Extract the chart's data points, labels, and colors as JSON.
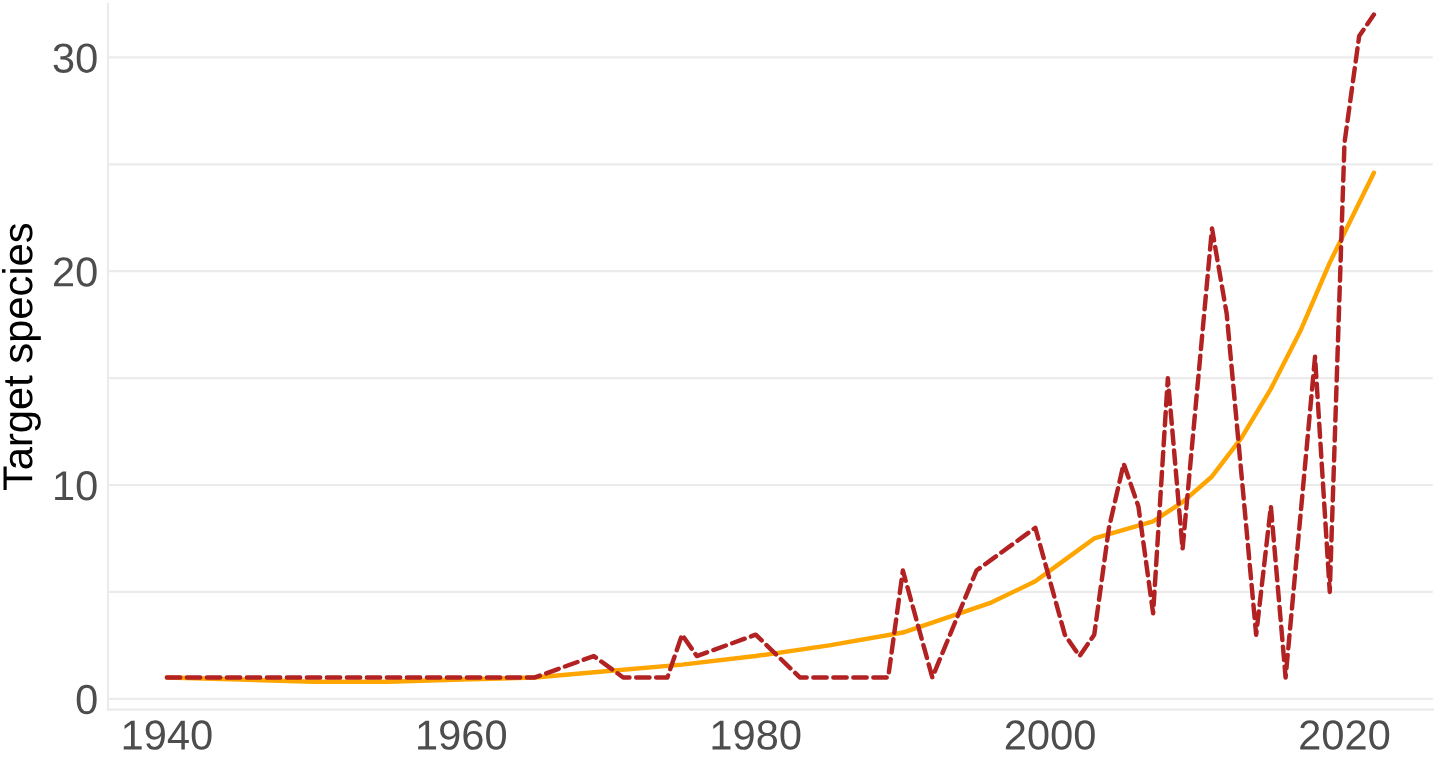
{
  "chart_data": {
    "type": "line",
    "ylabel": "Target species",
    "xlim": [
      1936,
      2026
    ],
    "ylim": [
      -0.5,
      32.5
    ],
    "xticks": [
      1940,
      1960,
      1980,
      2000,
      2020
    ],
    "yticks": [
      0,
      {
        "value": 5,
        "label": null
      },
      10,
      {
        "value": 15,
        "label": null
      },
      20,
      {
        "value": 25,
        "label": null
      },
      30
    ],
    "grid": "y",
    "series": [
      {
        "color": "#b22222",
        "line_style": "dashed",
        "x": [
          1940,
          1965,
          1969,
          1971,
          1974,
          1975,
          1976,
          1980,
          1983,
          1989,
          1990,
          1992,
          1995,
          1999,
          2001,
          2002,
          2003,
          2004,
          2005,
          2006,
          2007,
          2008,
          2009,
          2011,
          2012,
          2014,
          2015,
          2016,
          2018,
          2019,
          2020,
          2021,
          2022
        ],
        "values": [
          1,
          1,
          2,
          1,
          1,
          3,
          2,
          3,
          1,
          1,
          6,
          1,
          6,
          8,
          3,
          2,
          3,
          8,
          11,
          9,
          4,
          15,
          7,
          22,
          18,
          3,
          9,
          1,
          16,
          5,
          26,
          31,
          32
        ]
      },
      {
        "color": "#ffa500",
        "line_style": "solid",
        "x": [
          1940,
          1945,
          1950,
          1955,
          1960,
          1965,
          1970,
          1975,
          1980,
          1985,
          1990,
          1993,
          1996,
          1999,
          2001,
          2003,
          2005,
          2007,
          2009,
          2011,
          2013,
          2015,
          2017,
          2019,
          2020,
          2021,
          2022
        ],
        "values": [
          1.0,
          0.9,
          0.8,
          0.8,
          0.9,
          1.0,
          1.3,
          1.6,
          2.0,
          2.5,
          3.1,
          3.8,
          4.5,
          5.5,
          6.5,
          7.5,
          7.9,
          8.3,
          9.2,
          10.4,
          12.2,
          14.5,
          17.2,
          20.4,
          21.8,
          23.2,
          24.6
        ]
      }
    ]
  }
}
